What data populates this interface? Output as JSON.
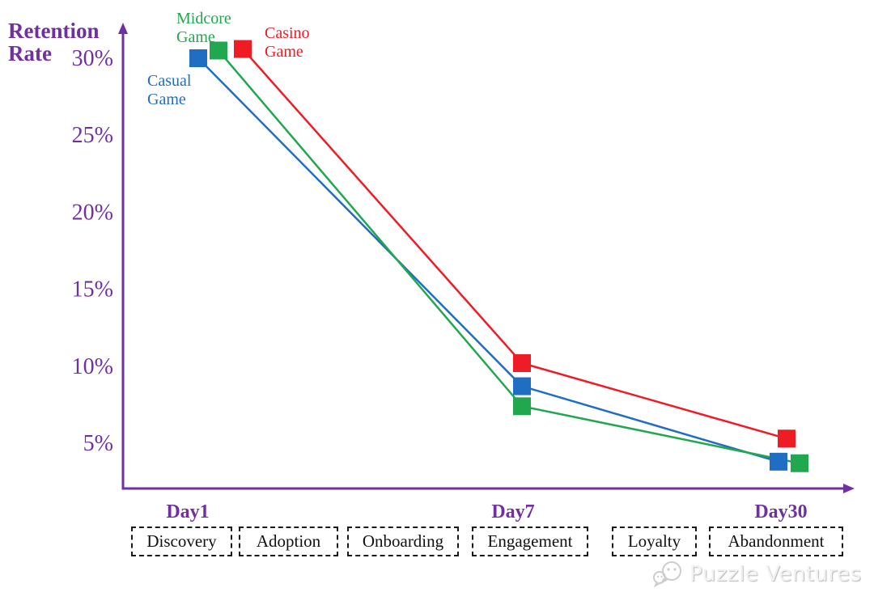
{
  "chart_data": {
    "type": "line",
    "title": "Retention Rate",
    "xlabel": "",
    "ylabel": "Retention Rate",
    "x_categories": [
      "Day1",
      "Day7",
      "Day30"
    ],
    "y_ticks": {
      "labels": [
        "30%",
        "25%",
        "20%",
        "15%",
        "10%",
        "5%"
      ],
      "values": [
        30,
        25,
        20,
        15,
        10,
        5
      ]
    },
    "ylim": [
      0,
      32
    ],
    "grid": false,
    "legend_position": "inline-annotations-near-day1",
    "axis_color": "#7030a0",
    "series": [
      {
        "name": "Casual Game",
        "color": "#1f6ec4",
        "values": [
          30,
          8.7,
          3.8
        ]
      },
      {
        "name": "Midcore Game",
        "color": "#21a74e",
        "values": [
          30.5,
          7.4,
          3.7
        ]
      },
      {
        "name": "Casino Game",
        "color": "#ee1c25",
        "values": [
          30.6,
          10.2,
          5.3
        ]
      }
    ],
    "marker": "square"
  },
  "stages": {
    "items": [
      "Discovery",
      "Adoption",
      "Onboarding",
      "Engagement",
      "Loyalty",
      "Abandonment"
    ]
  },
  "watermark": {
    "text": "Puzzle Ventures"
  }
}
